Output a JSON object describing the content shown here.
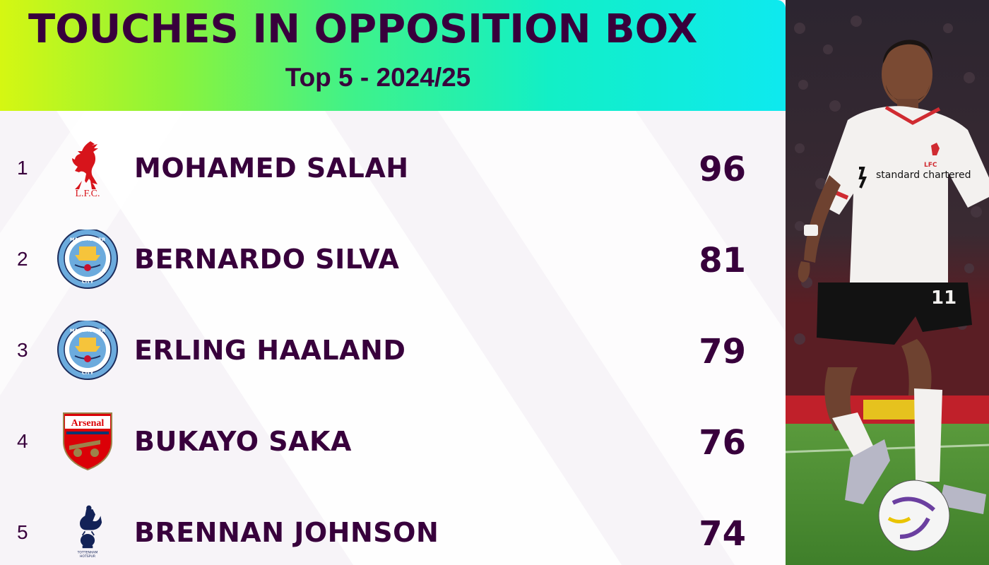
{
  "header": {
    "title": "TOUCHES IN OPPOSITION BOX",
    "subtitle": "Top 5 - 2024/25"
  },
  "rows": [
    {
      "rank": "1",
      "player": "MOHAMED SALAH",
      "value": "96",
      "club_badge": "liverpool-crest-icon",
      "badge_text": "L.F.C."
    },
    {
      "rank": "2",
      "player": "BERNARDO SILVA",
      "value": "81",
      "club_badge": "manchester-city-crest-icon",
      "badge_text": "MANCHESTER CITY"
    },
    {
      "rank": "3",
      "player": "ERLING HAALAND",
      "value": "79",
      "club_badge": "manchester-city-crest-icon",
      "badge_text": "MANCHESTER CITY"
    },
    {
      "rank": "4",
      "player": "BUKAYO SAKA",
      "value": "76",
      "club_badge": "arsenal-crest-icon",
      "badge_text": "Arsenal"
    },
    {
      "rank": "5",
      "player": "BRENNAN JOHNSON",
      "value": "74",
      "club_badge": "tottenham-crest-icon",
      "badge_text": "TOTTENHAM HOTSPUR"
    }
  ],
  "photo": {
    "shirt_sponsor": "standard chartered",
    "shirt_number": "11",
    "badge_text": "LFC"
  },
  "colors": {
    "text": "#38003c",
    "gradient_start": "#d5f712",
    "gradient_end": "#0ee9ef",
    "panel_bg": "#f6f3f7"
  }
}
